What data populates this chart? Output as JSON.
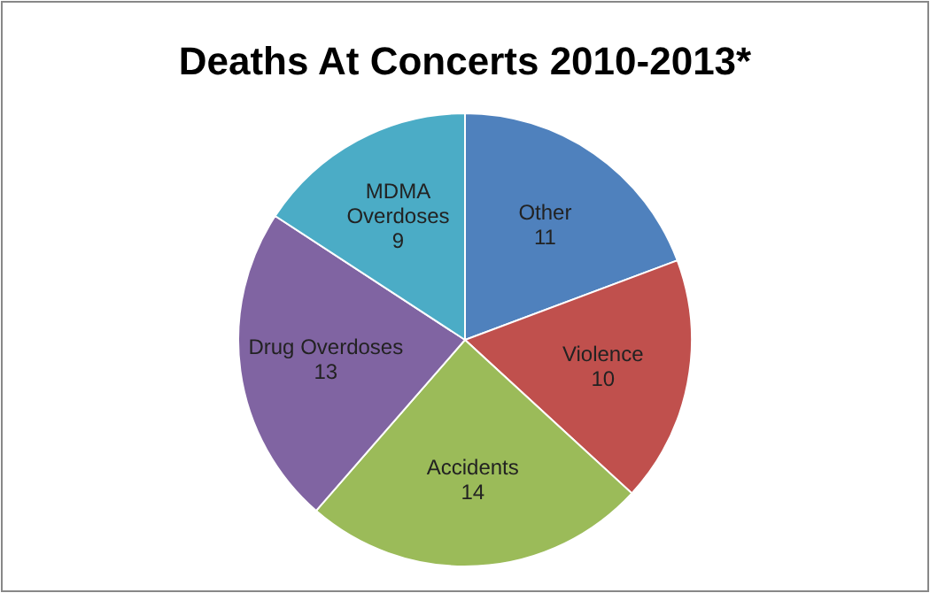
{
  "chart_data": {
    "type": "pie",
    "title": "Deaths At Concerts 2010-2013*",
    "categories": [
      "Other",
      "Violence",
      "Accidents",
      "Drug Overdoses",
      "MDMA Overdoses"
    ],
    "values": [
      11,
      10,
      14,
      13,
      9
    ],
    "colors": [
      "#4f81bd",
      "#c0504d",
      "#9bbb59",
      "#8064a2",
      "#4bacc6"
    ],
    "data_labels": true
  }
}
